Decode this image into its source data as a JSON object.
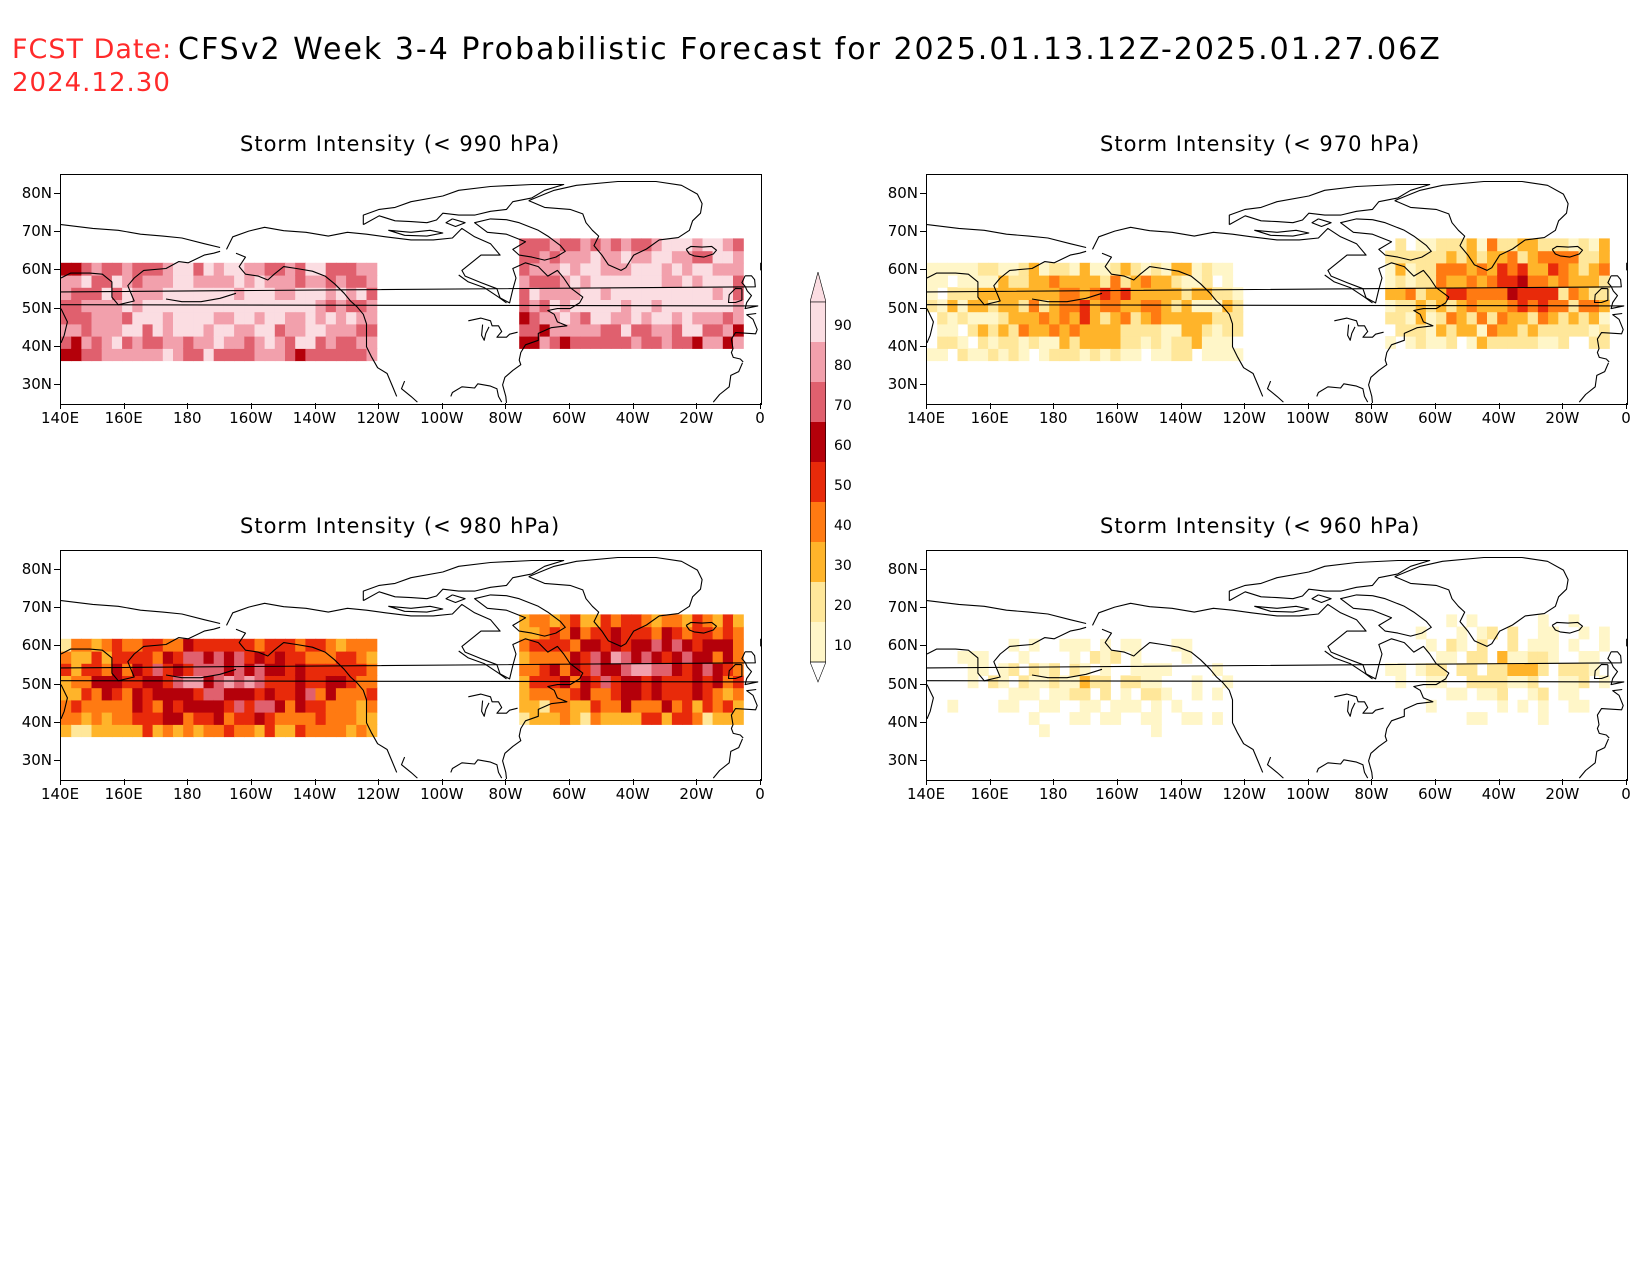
{
  "header": {
    "label": "FCST Date:",
    "title": "CFSv2 Week 3-4 Probabilistic Forecast for 2025.01.13.12Z-2025.01.27.06Z",
    "date": "2024.12.30"
  },
  "y_ticks": [
    "80N",
    "70N",
    "60N",
    "50N",
    "40N",
    "30N"
  ],
  "x_ticks": [
    "140E",
    "160E",
    "180",
    "160W",
    "140W",
    "120W",
    "100W",
    "80W",
    "60W",
    "40W",
    "20W",
    "0"
  ],
  "colorbar": {
    "labels": [
      "10",
      "20",
      "30",
      "40",
      "50",
      "60",
      "70",
      "80",
      "90"
    ],
    "colors": [
      "#fff6c8",
      "#ffe79a",
      "#ffb42a",
      "#ff7a12",
      "#e82a0a",
      "#b4000a",
      "#e0606e",
      "#f2a0ac",
      "#fbdde2"
    ]
  },
  "panels": [
    {
      "id": "p990",
      "title": "Storm Intensity (< 990 hPa)",
      "level": 4
    },
    {
      "id": "p970",
      "title": "Storm Intensity (< 970 hPa)",
      "level": 2
    },
    {
      "id": "p980",
      "title": "Storm Intensity (< 980 hPa)",
      "level": 3
    },
    {
      "id": "p960",
      "title": "Storm Intensity (< 960 hPa)",
      "level": 1
    }
  ]
}
